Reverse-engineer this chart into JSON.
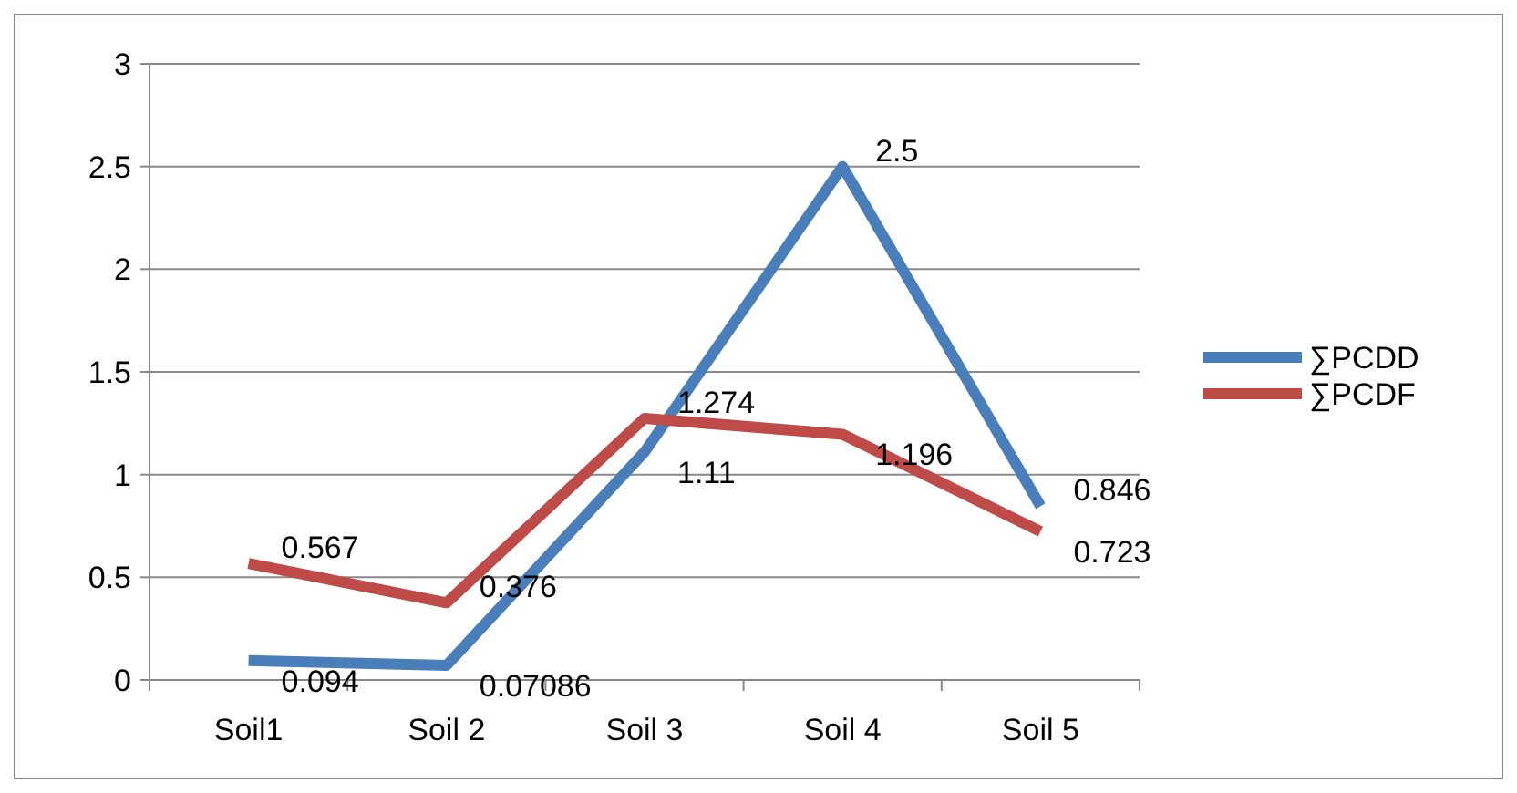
{
  "chart_data": {
    "type": "line",
    "categories": [
      "Soil1",
      "Soil 2",
      "Soil 3",
      "Soil 4",
      "Soil 5"
    ],
    "series": [
      {
        "name": "∑PCDD",
        "color": "#4a7ebb",
        "values": [
          0.094,
          0.07086,
          1.11,
          2.5,
          0.846
        ]
      },
      {
        "name": "∑PCDF",
        "color": "#be4b48",
        "values": [
          0.567,
          0.376,
          1.274,
          1.196,
          0.723
        ]
      }
    ],
    "ylim": [
      0,
      3
    ],
    "yticks": [
      0,
      0.5,
      1,
      1.5,
      2,
      2.5,
      3
    ],
    "grid": "y",
    "legend": "right",
    "marker": "none",
    "line_style": "solid",
    "data_labels": true
  }
}
